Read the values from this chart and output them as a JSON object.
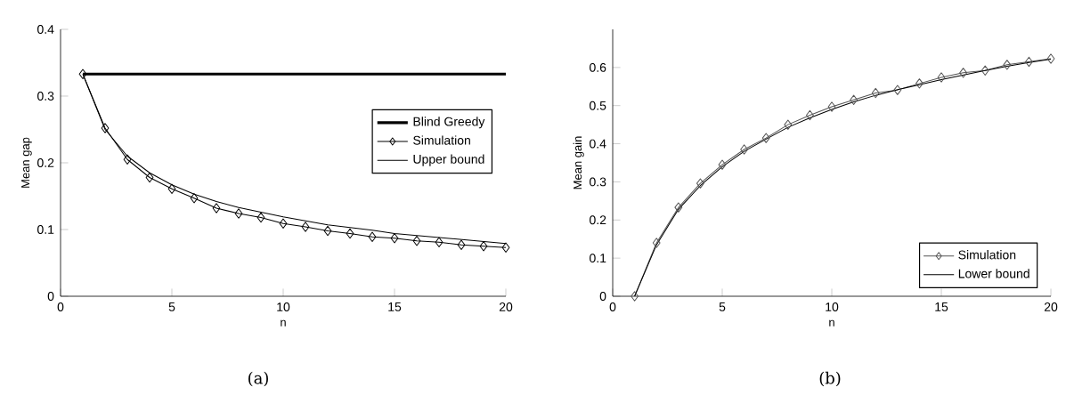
{
  "chart_data": [
    {
      "type": "line",
      "xlabel": "n",
      "ylabel": "Mean gap",
      "xlim": [
        0,
        20
      ],
      "ylim": [
        0,
        0.4
      ],
      "xticks": [
        0,
        5,
        10,
        15,
        20
      ],
      "yticks": [
        0,
        0.1,
        0.2,
        0.3,
        0.4
      ],
      "legend": "right",
      "grid": false,
      "annotations": [
        "(a)"
      ],
      "x": [
        1,
        2,
        3,
        4,
        5,
        6,
        7,
        8,
        9,
        10,
        11,
        12,
        13,
        14,
        15,
        16,
        17,
        18,
        19,
        20
      ],
      "series": [
        {
          "name": "Blind Greedy",
          "color": "#000000",
          "x": [
            1,
            20
          ],
          "values": [
            0.333,
            0.333
          ]
        },
        {
          "name": "Simulation",
          "color": "#000000",
          "marker": "diamond",
          "values": [
            0.333,
            0.252,
            0.205,
            0.178,
            0.161,
            0.147,
            0.132,
            0.124,
            0.118,
            0.109,
            0.104,
            0.098,
            0.094,
            0.089,
            0.087,
            0.083,
            0.081,
            0.077,
            0.075,
            0.073
          ]
        },
        {
          "name": "Upper bound",
          "color": "#000000",
          "marker": "none",
          "values": [
            0.333,
            0.25,
            0.21,
            0.185,
            0.167,
            0.153,
            0.142,
            0.133,
            0.126,
            0.119,
            0.113,
            0.107,
            0.103,
            0.099,
            0.094,
            0.091,
            0.088,
            0.085,
            0.082,
            0.079
          ]
        }
      ]
    },
    {
      "type": "line",
      "xlabel": "n",
      "ylabel": "Mean gain",
      "xlim": [
        0,
        20
      ],
      "ylim": [
        0,
        0.7
      ],
      "xticks": [
        0,
        5,
        10,
        15,
        20
      ],
      "yticks": [
        0,
        0.1,
        0.2,
        0.3,
        0.4,
        0.5,
        0.6
      ],
      "legend": "bottom right",
      "grid": false,
      "annotations": [
        "(b)"
      ],
      "x": [
        1,
        2,
        3,
        4,
        5,
        6,
        7,
        8,
        9,
        10,
        11,
        12,
        13,
        14,
        15,
        16,
        17,
        18,
        19,
        20
      ],
      "series": [
        {
          "name": "Simulation",
          "color": "#555555",
          "marker": "diamond",
          "values": [
            0,
            0.14,
            0.233,
            0.296,
            0.345,
            0.385,
            0.415,
            0.45,
            0.475,
            0.497,
            0.515,
            0.533,
            0.541,
            0.558,
            0.574,
            0.586,
            0.592,
            0.607,
            0.615,
            0.623
          ]
        },
        {
          "name": "Lower bound",
          "color": "#000000",
          "marker": "none",
          "values": [
            0,
            0.135,
            0.228,
            0.29,
            0.34,
            0.38,
            0.412,
            0.443,
            0.468,
            0.49,
            0.51,
            0.527,
            0.542,
            0.555,
            0.568,
            0.58,
            0.592,
            0.603,
            0.613,
            0.622
          ]
        }
      ]
    }
  ]
}
